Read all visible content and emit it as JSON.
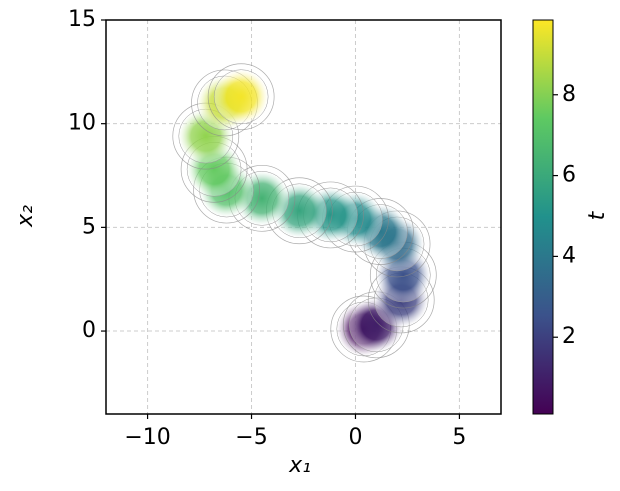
{
  "chart_data": {
    "type": "scatter",
    "xlabel": "x₁",
    "ylabel": "x₂",
    "x": [
      0.4,
      1.0,
      2.2,
      2.3,
      2.0,
      1.2,
      0.0,
      -1.2,
      -2.7,
      -4.5,
      -6.2,
      -6.8,
      -7.2,
      -6.3,
      -5.5
    ],
    "y": [
      0.1,
      0.3,
      1.5,
      2.7,
      4.2,
      4.8,
      5.4,
      5.6,
      5.8,
      6.4,
      6.8,
      7.8,
      9.4,
      11.0,
      11.3
    ],
    "c": [
      0.3,
      1.0,
      2.0,
      2.5,
      3.5,
      4.0,
      4.8,
      5.2,
      5.8,
      6.4,
      7.0,
      7.5,
      8.2,
      9.0,
      9.7
    ],
    "colormap": "viridis",
    "xlim": [
      -12,
      7
    ],
    "ylim": [
      -4,
      15
    ],
    "xticks": [
      {
        "value": -10,
        "label": "−10"
      },
      {
        "value": -5,
        "label": "−5"
      },
      0,
      5
    ],
    "yticks": [
      0,
      5,
      10,
      15
    ],
    "grid": true,
    "colorbar": {
      "label": "t",
      "lim": [
        0.1,
        9.85
      ],
      "ticks": [
        2,
        4,
        6,
        8
      ]
    }
  }
}
